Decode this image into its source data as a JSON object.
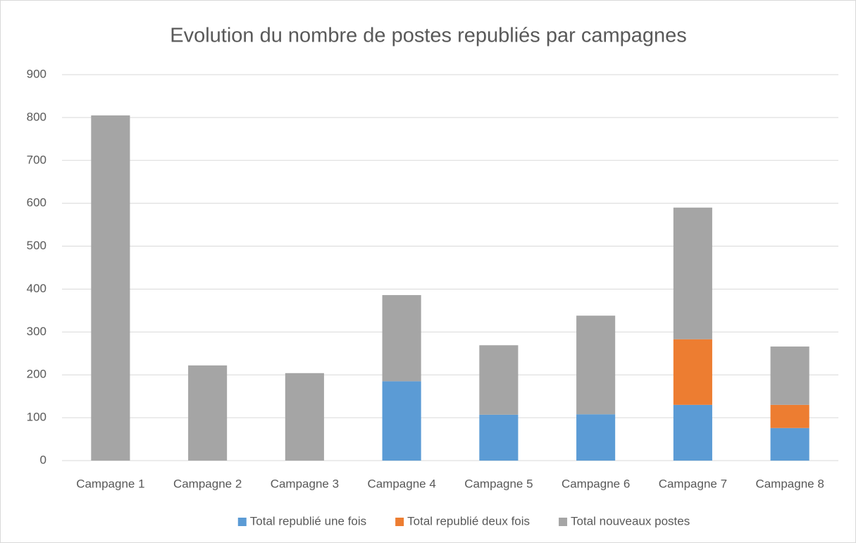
{
  "chart_data": {
    "type": "stacked_bar",
    "title": "Evolution du nombre de postes republiés par campagnes",
    "categories": [
      "Campagne 1",
      "Campagne 2",
      "Campagne 3",
      "Campagne 4",
      "Campagne 5",
      "Campagne 6",
      "Campagne 7",
      "Campagne 8"
    ],
    "series": [
      {
        "name": "Total republié une fois",
        "color": "#5b9bd5",
        "values": [
          0,
          0,
          0,
          185,
          107,
          108,
          130,
          76
        ]
      },
      {
        "name": "Total republié deux fois",
        "color": "#ed7d31",
        "values": [
          0,
          0,
          0,
          0,
          0,
          0,
          153,
          54
        ]
      },
      {
        "name": "Total nouveaux postes",
        "color": "#a5a5a5",
        "values": [
          805,
          222,
          204,
          201,
          162,
          230,
          307,
          136
        ]
      }
    ],
    "ylim": [
      0,
      900
    ],
    "yticks": [
      0,
      100,
      200,
      300,
      400,
      500,
      600,
      700,
      800,
      900
    ],
    "grid": true,
    "legend": "bottom"
  }
}
